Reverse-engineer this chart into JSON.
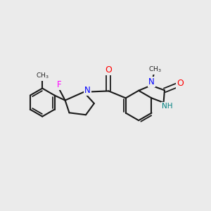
{
  "background_color": "#ebebeb",
  "bond_color": "#1a1a1a",
  "O_color": "#ff0000",
  "N_color": "#0000ff",
  "F_color": "#ff00ff",
  "NH_color": "#008080",
  "figsize": [
    3.0,
    3.0
  ],
  "dpi": 100,
  "xlim": [
    0,
    10
  ],
  "ylim": [
    0,
    10
  ]
}
